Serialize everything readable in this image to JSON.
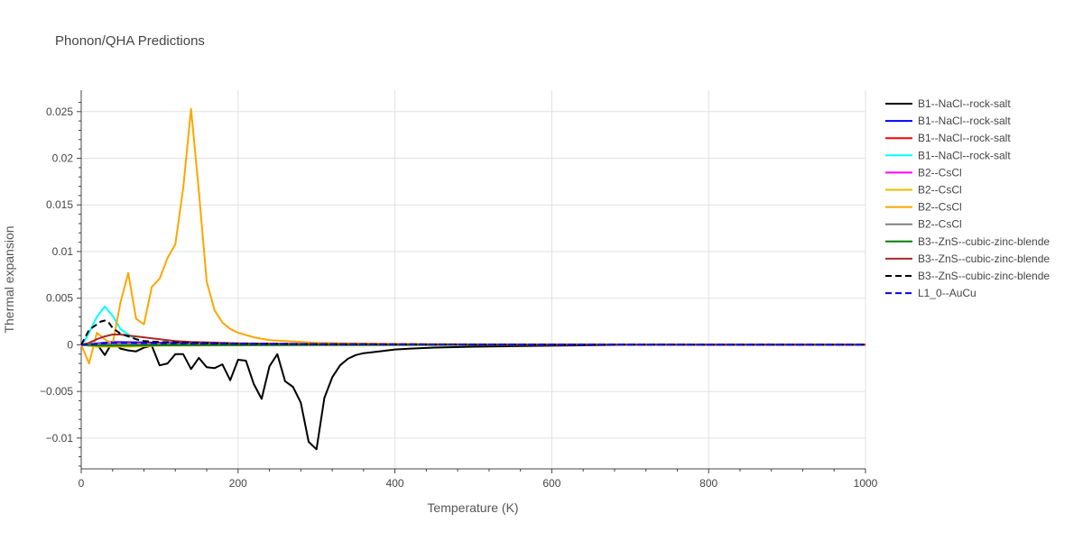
{
  "chart_data": {
    "type": "line",
    "title": "Phonon/QHA Predictions",
    "xlabel": "Temperature (K)",
    "ylabel": "Thermal expansion",
    "xlim": [
      0,
      1000
    ],
    "ylim": [
      -0.0133,
      0.0273
    ],
    "x_ticks": [
      0,
      200,
      400,
      600,
      800,
      1000
    ],
    "x_tick_labels": [
      "0",
      "200",
      "400",
      "600",
      "800",
      "1000"
    ],
    "y_ticks": [
      -0.01,
      -0.005,
      0,
      0.005,
      0.01,
      0.015,
      0.02,
      0.025
    ],
    "y_tick_labels": [
      "−0.01",
      "−0.005",
      "0",
      "0.005",
      "0.01",
      "0.015",
      "0.02",
      "0.025"
    ],
    "grid": true,
    "legend_position": "right",
    "series": [
      {
        "name": "B1--NaCl--rock-salt",
        "color": "#000000",
        "dash": "solid",
        "x": [
          0,
          10,
          20,
          30,
          40,
          50,
          60,
          70,
          80,
          90,
          100,
          110,
          120,
          130,
          140,
          150,
          160,
          170,
          180,
          190,
          200,
          210,
          220,
          230,
          240,
          250,
          260,
          270,
          280,
          290,
          300,
          310,
          320,
          330,
          340,
          350,
          360,
          370,
          380,
          400,
          420,
          450,
          500,
          600,
          700,
          800,
          900,
          1000
        ],
        "y": [
          0,
          -0.0001,
          0.0001,
          -0.0011,
          0.0003,
          -0.0004,
          -0.0006,
          -0.0007,
          -0.0003,
          -0.0001,
          -0.0022,
          -0.002,
          -0.001,
          -0.001,
          -0.0026,
          -0.0014,
          -0.0024,
          -0.0025,
          -0.0021,
          -0.0038,
          -0.0016,
          -0.0017,
          -0.0042,
          -0.0058,
          -0.0023,
          -0.001,
          -0.0039,
          -0.0045,
          -0.0062,
          -0.0104,
          -0.0112,
          -0.0057,
          -0.0035,
          -0.0022,
          -0.0015,
          -0.0011,
          -0.0009,
          -0.0008,
          -0.0007,
          -0.0005,
          -0.0004,
          -0.0003,
          -0.0002,
          -0.0001,
          0,
          0,
          0,
          0
        ]
      },
      {
        "name": "B1--NaCl--rock-salt",
        "color": "#0000ff",
        "dash": "solid",
        "x": [
          0,
          10,
          20,
          40,
          60,
          80,
          100,
          150,
          200,
          300,
          400,
          500,
          700,
          1000
        ],
        "y": [
          0,
          5e-05,
          0.00015,
          0.0003,
          0.00028,
          0.00025,
          0.00022,
          0.00017,
          0.00013,
          9e-05,
          6e-05,
          4e-05,
          2e-05,
          1e-05
        ]
      },
      {
        "name": "B1--NaCl--rock-salt",
        "color": "#ff0000",
        "dash": "solid",
        "x": [
          0,
          10,
          20,
          40,
          60,
          80,
          100,
          150,
          200,
          300,
          400,
          500,
          700,
          1000
        ],
        "y": [
          0,
          4e-05,
          0.0001,
          0.0002,
          0.0002,
          0.00018,
          0.00016,
          0.00012,
          0.0001,
          7e-05,
          5e-05,
          3e-05,
          2e-05,
          1e-05
        ]
      },
      {
        "name": "B1--NaCl--rock-salt",
        "color": "#00ffff",
        "dash": "solid",
        "x": [
          0,
          5,
          10,
          20,
          30,
          40,
          50,
          60,
          70
        ],
        "y": [
          0,
          0.0005,
          0.0013,
          0.003,
          0.0041,
          0.0031,
          0.0017,
          0.0011,
          0.0006
        ]
      },
      {
        "name": "B2--CsCl",
        "color": "#ff00ff",
        "dash": "solid",
        "x": [
          0,
          10,
          20,
          40,
          60,
          80,
          100,
          150,
          200,
          300,
          400,
          500,
          700,
          1000
        ],
        "y": [
          0,
          3e-05,
          8e-05,
          0.00015,
          0.00014,
          0.00012,
          0.0001,
          8e-05,
          6e-05,
          4e-05,
          3e-05,
          2e-05,
          1e-05,
          1e-05
        ]
      },
      {
        "name": "B2--CsCl",
        "color": "#e6bf00",
        "dash": "solid",
        "x": [
          0,
          10,
          20,
          40,
          60,
          80,
          100,
          150,
          200,
          300,
          400,
          500,
          700,
          1000
        ],
        "y": [
          0,
          -0.0001,
          -0.0002,
          -0.0002,
          -0.0002,
          -0.00015,
          -0.0001,
          -8e-05,
          -6e-05,
          -4e-05,
          -3e-05,
          -2e-05,
          -1e-05,
          0
        ]
      },
      {
        "name": "B2--CsCl",
        "color": "#ffa500",
        "dash": "solid",
        "x": [
          0,
          10,
          20,
          30,
          40,
          50,
          60,
          70,
          80,
          90,
          100,
          110,
          120,
          130,
          140,
          150,
          160,
          170,
          180,
          190,
          200,
          220,
          240,
          260,
          300,
          350,
          400,
          500,
          600,
          800,
          1000
        ],
        "y": [
          0,
          -0.002,
          0.0013,
          0.0006,
          0.0001,
          0.0045,
          0.0077,
          0.0028,
          0.0022,
          0.0062,
          0.0071,
          0.0093,
          0.0108,
          0.0168,
          0.0253,
          0.0165,
          0.0068,
          0.0037,
          0.0024,
          0.0017,
          0.0013,
          0.0008,
          0.0005,
          0.0004,
          0.0002,
          0.00015,
          0.0001,
          5e-05,
          3e-05,
          1e-05,
          0
        ]
      },
      {
        "name": "B2--CsCl",
        "color": "#808080",
        "dash": "solid",
        "x": [
          0,
          10,
          20,
          40,
          60,
          80,
          100,
          150,
          200,
          300,
          400,
          500,
          700,
          1000
        ],
        "y": [
          0,
          2e-05,
          6e-05,
          0.0001,
          0.0001,
          9e-05,
          8e-05,
          6e-05,
          5e-05,
          3e-05,
          2e-05,
          2e-05,
          1e-05,
          0
        ]
      },
      {
        "name": "B3--ZnS--cubic-zinc-blende",
        "color": "#008000",
        "dash": "solid",
        "x": [
          0,
          10,
          20,
          40,
          60,
          80,
          100,
          150,
          200,
          300,
          400,
          500,
          700,
          1000
        ],
        "y": [
          0,
          -3e-05,
          -8e-05,
          -0.0001,
          -8e-05,
          -6e-05,
          -5e-05,
          -4e-05,
          -3e-05,
          -2e-05,
          -1e-05,
          -1e-05,
          0,
          0
        ]
      },
      {
        "name": "B3--ZnS--cubic-zinc-blende",
        "color": "#a52a2a",
        "dash": "solid",
        "x": [
          0,
          10,
          20,
          30,
          40,
          50,
          60,
          70,
          80,
          100,
          120,
          140,
          160,
          180,
          200,
          250,
          300,
          350,
          400,
          500,
          600,
          800,
          1000
        ],
        "y": [
          0,
          0.0002,
          0.0006,
          0.0009,
          0.0011,
          0.0011,
          0.001,
          0.0009,
          0.0008,
          0.0006,
          0.0004,
          0.0003,
          0.00025,
          0.0002,
          0.00016,
          0.00011,
          8e-05,
          6e-05,
          5e-05,
          3e-05,
          2e-05,
          1e-05,
          1e-05
        ]
      },
      {
        "name": "B3--ZnS--cubic-zinc-blende",
        "color": "#000000",
        "dash": "dash",
        "x": [
          0,
          10,
          20,
          25,
          30,
          35,
          40,
          50,
          60,
          70,
          80,
          100,
          150,
          200,
          300,
          400,
          500,
          600,
          800,
          1000
        ],
        "y": [
          0,
          0.0016,
          0.0022,
          0.0025,
          0.0026,
          0.0024,
          0.0018,
          0.0012,
          0.0009,
          0.0006,
          0.0004,
          0.0003,
          0.0002,
          0.00013,
          8e-05,
          5e-05,
          4e-05,
          3e-05,
          2e-05,
          1e-05
        ]
      },
      {
        "name": "L1_0--AuCu",
        "color": "#0000ff",
        "dash": "dash",
        "x": [
          0,
          10,
          20,
          40,
          60,
          80,
          100,
          150,
          200,
          300,
          400,
          500,
          700,
          1000
        ],
        "y": [
          0,
          5e-05,
          0.0001,
          0.0002,
          0.0002,
          0.00018,
          0.00016,
          0.00013,
          0.0001,
          7e-05,
          5e-05,
          4e-05,
          2e-05,
          1e-05
        ]
      }
    ]
  }
}
